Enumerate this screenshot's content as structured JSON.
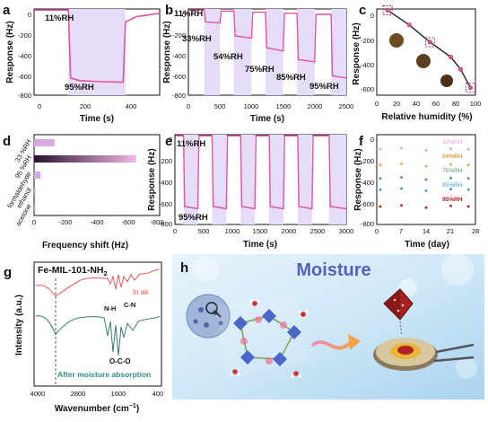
{
  "panels": {
    "a": {
      "letter": "a",
      "xlabel": "Time (s)",
      "ylabel": "Response (Hz)",
      "xticks": [
        "0",
        "200",
        "400"
      ],
      "yticks": [
        "0",
        "-200",
        "-400",
        "-600",
        "-800"
      ],
      "annotations": [
        "11%RH",
        "95%RH"
      ]
    },
    "b": {
      "letter": "b",
      "xlabel": "Time (s)",
      "ylabel": "Response (Hz)",
      "xticks": [
        "0",
        "500",
        "1000",
        "1500",
        "2000",
        "2500"
      ],
      "yticks": [
        "0",
        "-200",
        "-400",
        "-600",
        "-800"
      ],
      "annotations": [
        "11%RH",
        "33%RH",
        "54%RH",
        "75%RH",
        "85%RH",
        "95%RH"
      ]
    },
    "c": {
      "letter": "c",
      "xlabel": "Relative humidity (%)",
      "ylabel": "Response (Hz)",
      "xticks": [
        "0",
        "20",
        "40",
        "60",
        "80",
        "100"
      ],
      "yticks": [
        "0",
        "-200",
        "-400",
        "-600"
      ]
    },
    "d": {
      "letter": "d",
      "xlabel": "Frequency shift (Hz)",
      "categories": [
        "33 %RH",
        "95 %RH",
        "formaldehyde",
        "ethanol",
        "acetone"
      ],
      "xticks": [
        "0",
        "-200",
        "-400",
        "-600",
        "-800"
      ]
    },
    "e": {
      "letter": "e",
      "xlabel": "Time (s)",
      "ylabel": "Response (Hz)",
      "xticks": [
        "0",
        "500",
        "1000",
        "1500",
        "2000",
        "2500",
        "3000"
      ],
      "yticks": [
        "0",
        "-200",
        "-400",
        "-600",
        "-800"
      ],
      "annotations": [
        "11%RH",
        "95%RH"
      ]
    },
    "f": {
      "letter": "f",
      "xlabel": "Time (day)",
      "ylabel": "Response (Hz)",
      "xticks": [
        "0",
        "7",
        "14",
        "21",
        "28"
      ],
      "yticks": [
        "0",
        "-200",
        "-400",
        "-600",
        "-800"
      ],
      "legend": [
        "33%RH",
        "54%RH",
        "75%RH",
        "85%RH",
        "95%RH"
      ]
    },
    "g": {
      "letter": "g",
      "title": "Fe-MIL-101-NH",
      "title_sub": "2",
      "xlabel": "Wavenumber (cm",
      "xlabel_sup": "−1",
      "xlabel_end": ")",
      "ylabel": "Intensity (a.u.)",
      "xticks": [
        "4000",
        "2800",
        "1600",
        "400"
      ],
      "annotations": [
        "In air",
        "N-H",
        "C-N",
        "O-C-O",
        "After moisture absorption"
      ]
    },
    "h": {
      "letter": "h",
      "title": "Moisture"
    }
  },
  "colors": {
    "pink": "#e0559f",
    "purple_fill": "#e7dcf7",
    "red": "#e04848",
    "teal": "#3a7a6e",
    "navy": "#2a3060"
  },
  "chart_data": [
    {
      "panel": "a",
      "type": "line",
      "x": [
        0,
        150,
        160,
        200,
        300,
        390,
        400,
        450,
        550
      ],
      "y": [
        -10,
        -10,
        -640,
        -665,
        -675,
        -680,
        -120,
        -70,
        -40
      ],
      "xlim": [
        0,
        550
      ],
      "ylim": [
        -800,
        0
      ]
    },
    {
      "panel": "b",
      "type": "line",
      "series": [
        {
          "name": "response",
          "x": [
            0,
            250,
            270,
            500,
            520,
            720,
            740,
            1000,
            1020,
            1220,
            1240,
            1500,
            1520,
            1720,
            1740,
            2000,
            2020,
            2260,
            2280,
            2500
          ],
          "y": [
            -10,
            -10,
            -120,
            -130,
            -20,
            -20,
            -250,
            -270,
            -30,
            -30,
            -360,
            -390,
            -40,
            -40,
            -470,
            -490,
            -50,
            -50,
            -620,
            -640
          ]
        }
      ],
      "xlim": [
        0,
        2500
      ],
      "ylim": [
        -800,
        0
      ]
    },
    {
      "panel": "c",
      "type": "scatter",
      "x": [
        11,
        33,
        54,
        75,
        85,
        95
      ],
      "y": [
        -10,
        -130,
        -270,
        -390,
        -490,
        -640
      ],
      "xlim": [
        0,
        100
      ],
      "ylim": [
        -700,
        0
      ]
    },
    {
      "panel": "d",
      "type": "bar",
      "categories": [
        "33 %RH",
        "95 %RH",
        "formaldehyde",
        "ethanol",
        "acetone"
      ],
      "values": [
        -130,
        -650,
        -40,
        -5,
        -3
      ],
      "xlim": [
        0,
        -800
      ]
    },
    {
      "panel": "e",
      "type": "line",
      "x": [
        0,
        150,
        170,
        400,
        420,
        650,
        670,
        900,
        920,
        1150,
        1170,
        1400,
        1420,
        1650,
        1670,
        1900,
        1920,
        2150,
        2170,
        2400,
        2420,
        2700,
        2720,
        3000
      ],
      "y": [
        -10,
        -10,
        -640,
        -660,
        -10,
        -10,
        -640,
        -660,
        -10,
        -10,
        -640,
        -660,
        -10,
        -10,
        -640,
        -660,
        -10,
        -10,
        -640,
        -660,
        -10,
        -10,
        -640,
        -660
      ],
      "xlim": [
        0,
        3000
      ],
      "ylim": [
        -800,
        0
      ]
    },
    {
      "panel": "f",
      "type": "scatter",
      "series": [
        {
          "name": "33%RH",
          "x": [
            1,
            7,
            14,
            21,
            26
          ],
          "y": [
            -130,
            -120,
            -140,
            -125,
            -130
          ]
        },
        {
          "name": "54%RH",
          "x": [
            1,
            7,
            14,
            21,
            26
          ],
          "y": [
            -270,
            -260,
            -280,
            -265,
            -270
          ]
        },
        {
          "name": "75%RH",
          "x": [
            1,
            7,
            14,
            21,
            26
          ],
          "y": [
            -390,
            -380,
            -400,
            -385,
            -390
          ]
        },
        {
          "name": "85%RH",
          "x": [
            1,
            7,
            14,
            21,
            26
          ],
          "y": [
            -490,
            -480,
            -500,
            -485,
            -490
          ]
        },
        {
          "name": "95%RH",
          "x": [
            1,
            7,
            14,
            21,
            26
          ],
          "y": [
            -640,
            -630,
            -650,
            -635,
            -640
          ]
        }
      ],
      "xlim": [
        0,
        28
      ],
      "ylim": [
        -800,
        0
      ]
    }
  ]
}
